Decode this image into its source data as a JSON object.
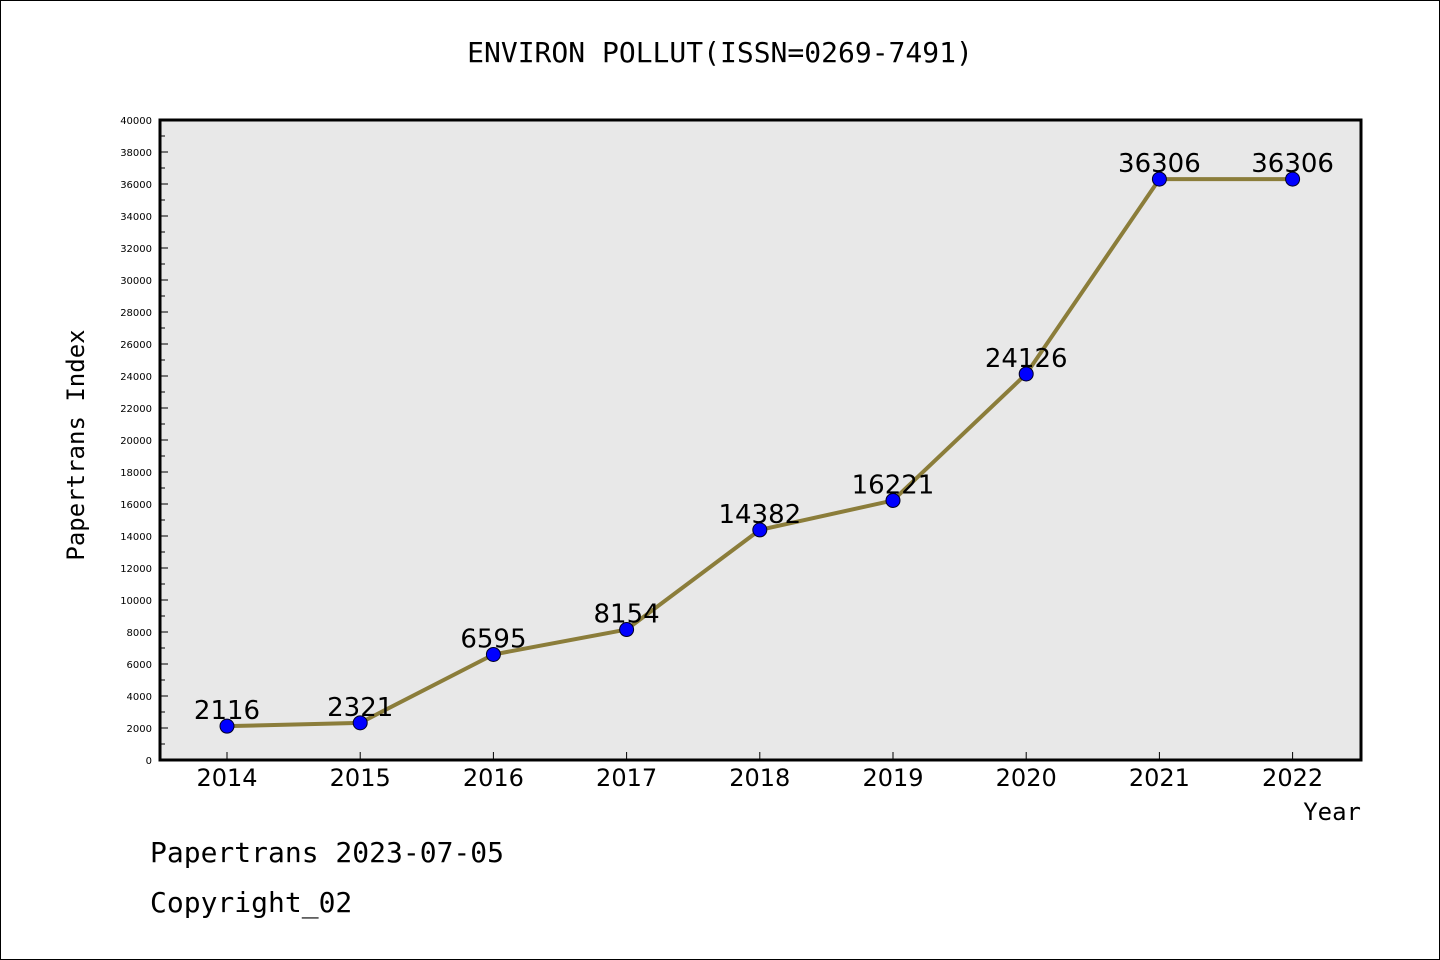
{
  "title": "ENVIRON POLLUT(ISSN=0269-7491)",
  "footer": {
    "line1": "Papertrans 2023-07-05",
    "line2": "Copyright_02"
  },
  "chart_data": {
    "type": "line",
    "title": "ENVIRON POLLUT(ISSN=0269-7491)",
    "xlabel": "Year",
    "ylabel": "Papertrans Index",
    "categories": [
      "2014",
      "2015",
      "2016",
      "2017",
      "2018",
      "2019",
      "2020",
      "2021",
      "2022"
    ],
    "series": [
      {
        "values": [
          2116,
          2321,
          6595,
          8154,
          14382,
          16221,
          24126,
          36306,
          36306
        ]
      }
    ],
    "ylim": [
      0,
      40000
    ],
    "ytick_step": 2000,
    "grid": false,
    "colors": {
      "line": "#8b7d3a",
      "marker": "#0000ff",
      "plot_bg": "#e8e8e8"
    }
  }
}
